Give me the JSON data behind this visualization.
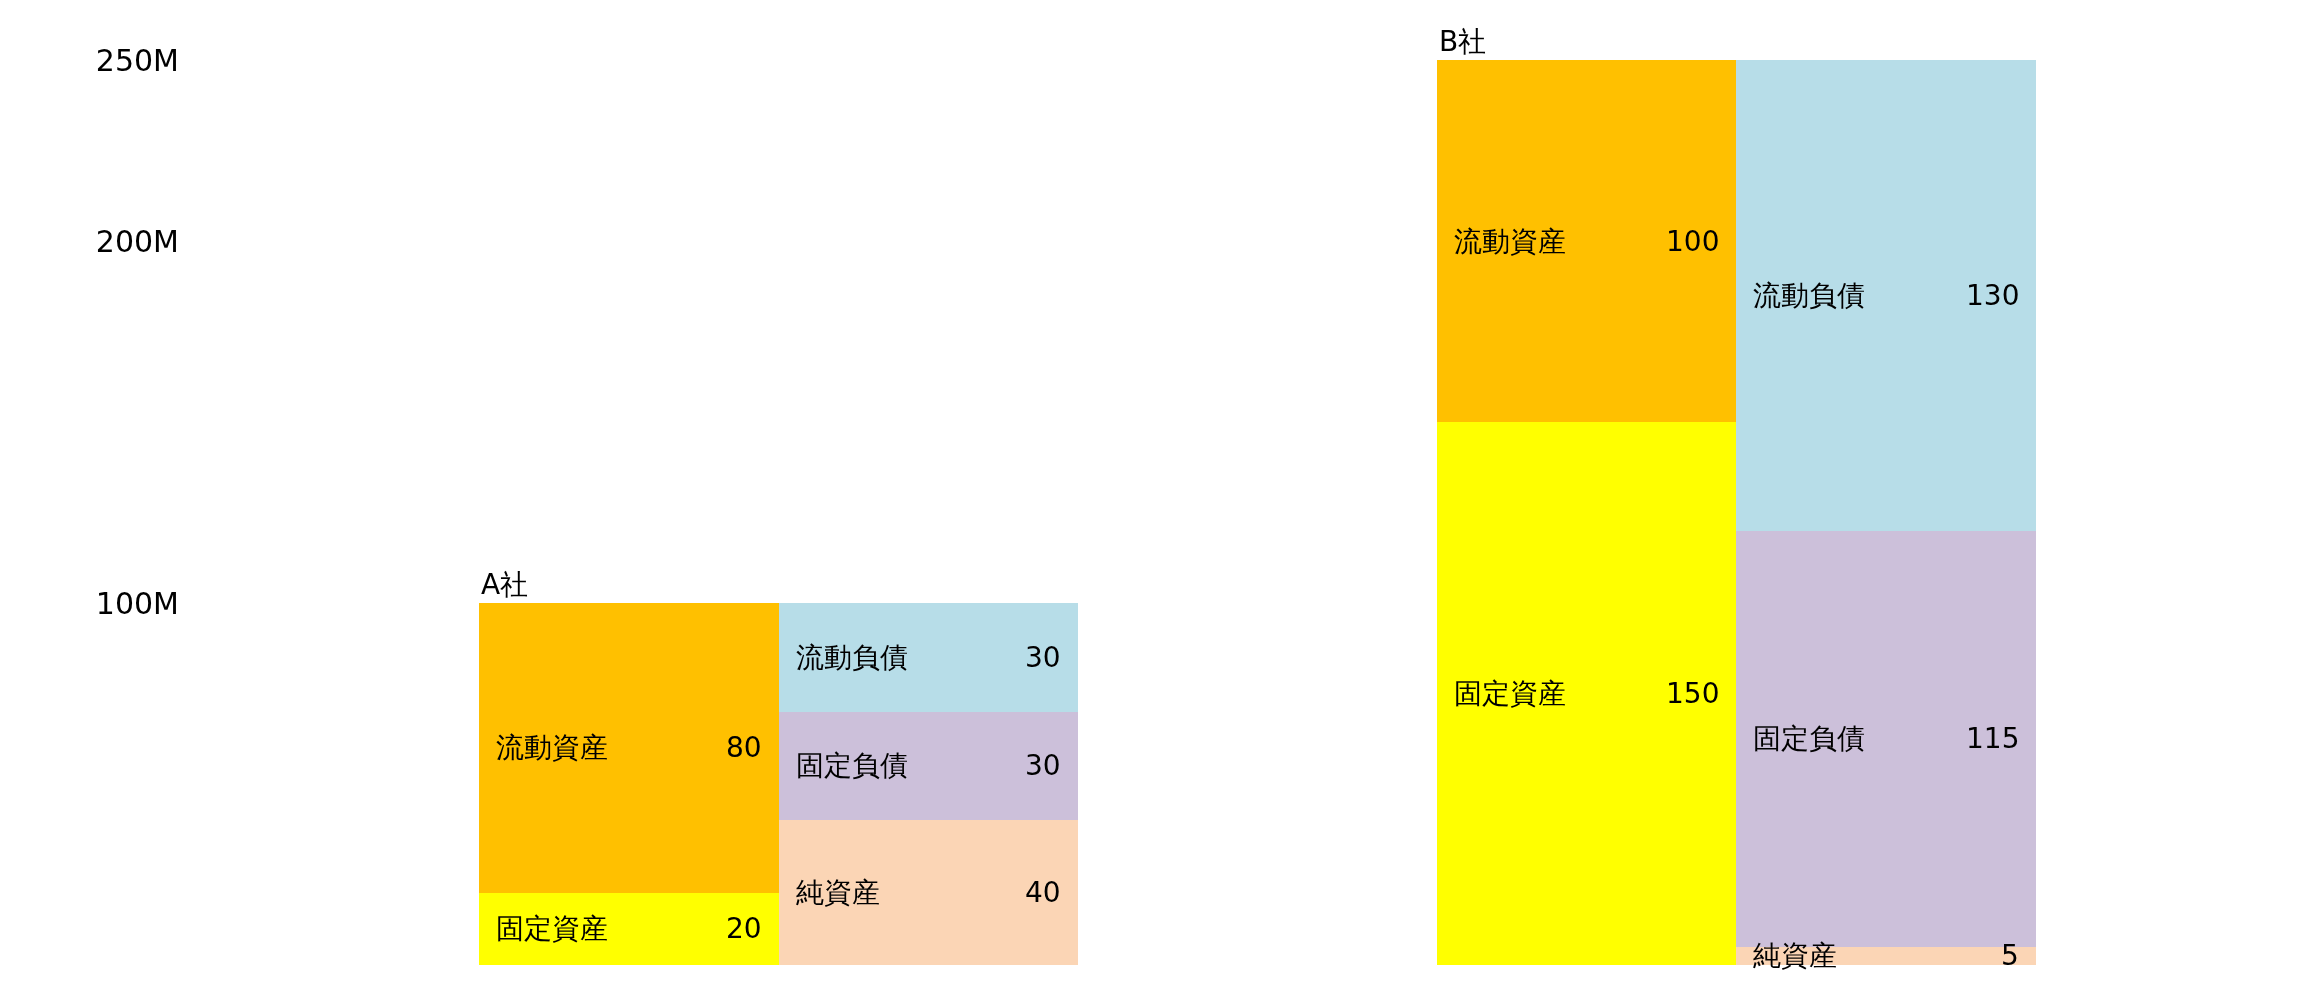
{
  "chart_data": {
    "type": "bar",
    "stacked": true,
    "categories": [
      "A社",
      null,
      "B社",
      null
    ],
    "series": [
      {
        "name": "固定資産",
        "color": "#ffff00",
        "values": [
          20,
          null,
          150,
          null
        ]
      },
      {
        "name": "流動資産",
        "color": "#ffc000",
        "values": [
          80,
          null,
          100,
          null
        ]
      },
      {
        "name": "純資産",
        "color": "#fbd5b5",
        "values": [
          null,
          40,
          null,
          5
        ]
      },
      {
        "name": "固定負債",
        "color": "#ccc0da",
        "values": [
          null,
          30,
          null,
          115
        ]
      },
      {
        "name": "流動負債",
        "color": "#b7dde8",
        "values": [
          null,
          30,
          null,
          130
        ]
      }
    ],
    "ylim": [
      0,
      250
    ],
    "yticks": [
      {
        "value": 100,
        "label": "100M"
      },
      {
        "value": 200,
        "label": "200M"
      },
      {
        "value": 250,
        "label": "250M"
      }
    ],
    "data_labels": true,
    "legend": false
  }
}
